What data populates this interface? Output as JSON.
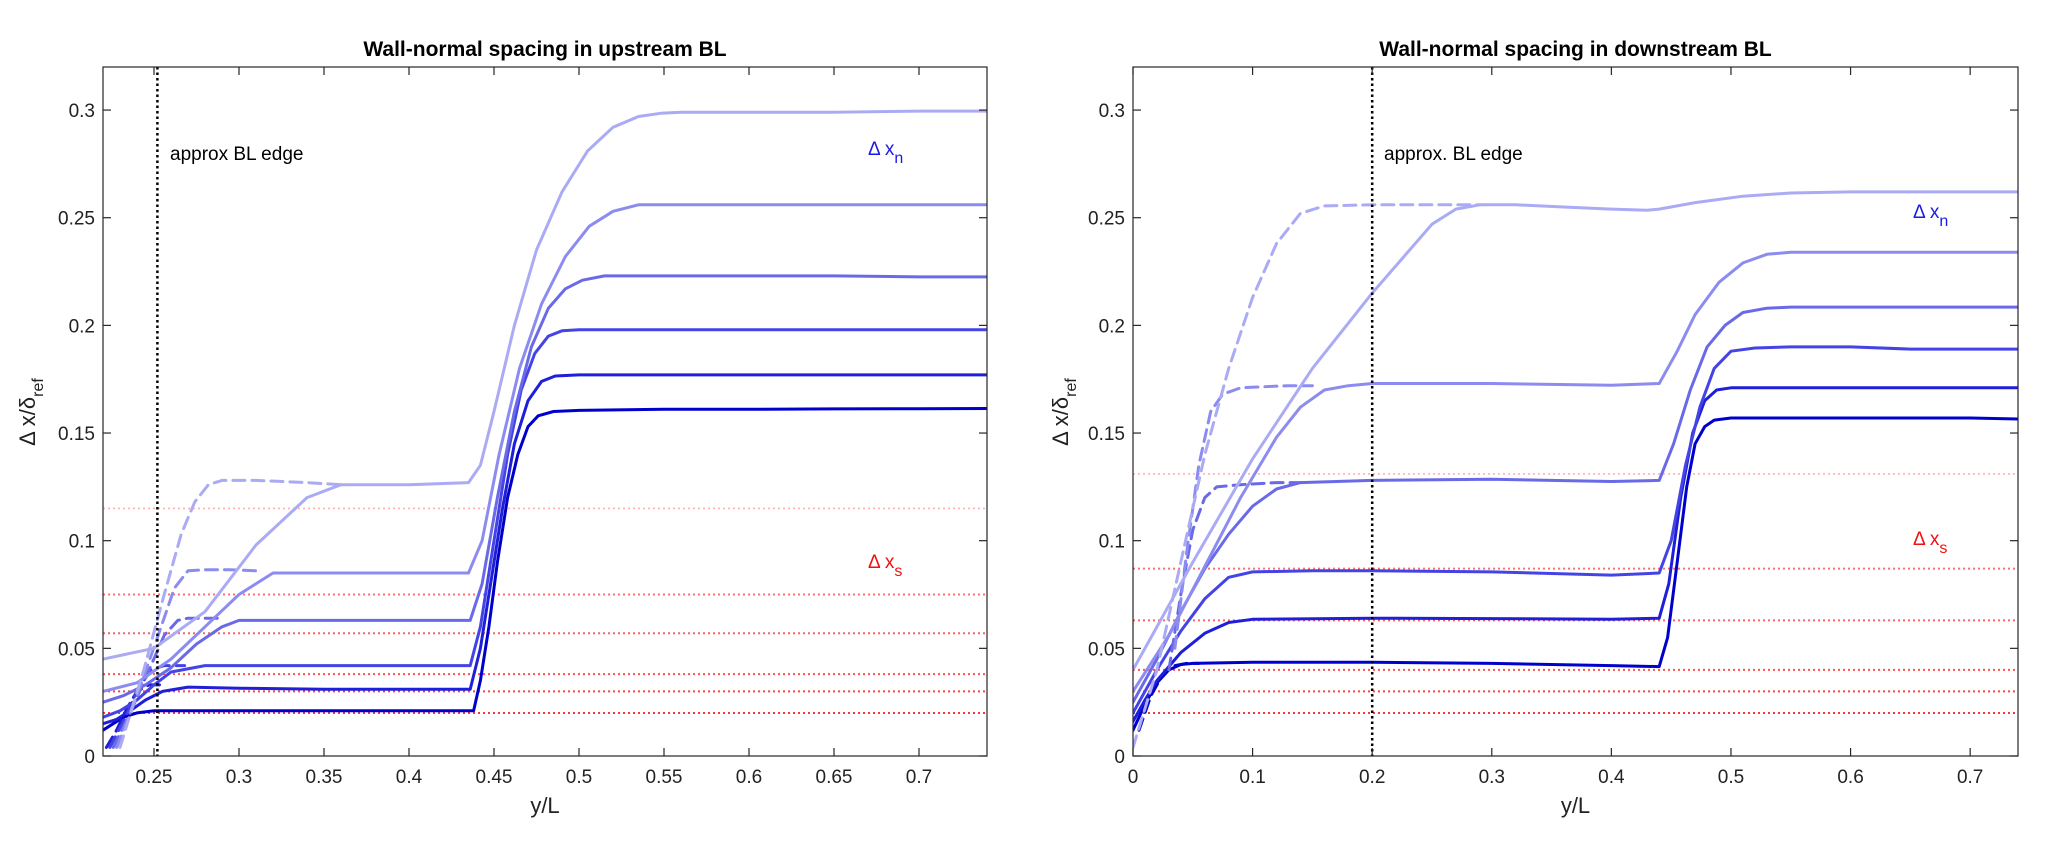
{
  "colors": {
    "dn_palette": [
      "#0000cc",
      "#1f1fd9",
      "#4444e6",
      "#6a6ae8",
      "#8c8cf0",
      "#ababf5"
    ],
    "ds": "#ff3333",
    "ds_light": "#ffb0b0",
    "axis": "#262626",
    "edge": "#000000"
  },
  "chart_data": [
    {
      "type": "line",
      "title": "Wall-normal spacing in upstream BL",
      "xlabel": "y/L",
      "ylabel_main": "Δ x/δ",
      "ylabel_sub": "ref",
      "xlim": [
        0.22,
        0.74
      ],
      "ylim": [
        0,
        0.32
      ],
      "xticks": [
        0.25,
        0.3,
        0.35,
        0.4,
        0.45,
        0.5,
        0.55,
        0.6,
        0.65,
        0.7
      ],
      "xtick_labels": [
        "0.25",
        "0.3",
        "0.35",
        "0.4",
        "0.45",
        "0.5",
        "0.55",
        "0.6",
        "0.65",
        "0.7"
      ],
      "yticks": [
        0,
        0.05,
        0.1,
        0.15,
        0.2,
        0.25,
        0.3
      ],
      "ytick_labels": [
        "0",
        "0.05",
        "0.1",
        "0.15",
        "0.2",
        "0.25",
        "0.3"
      ],
      "edge_line": {
        "x": 0.252,
        "label": "approx BL edge"
      },
      "dn_label": {
        "main": "Δ x",
        "sub": "n"
      },
      "ds_label": {
        "main": "Δ x",
        "sub": "s"
      },
      "ds_levels": [
        0.02,
        0.03,
        0.038,
        0.057,
        0.075,
        0.115
      ],
      "series": [
        {
          "shade": 0,
          "dash": false,
          "x": [
            0.22,
            0.226,
            0.232,
            0.24,
            0.25,
            0.28,
            0.3,
            0.35,
            0.4,
            0.438,
            0.442,
            0.447,
            0.452,
            0.458,
            0.464,
            0.47,
            0.476,
            0.485,
            0.5,
            0.55,
            0.6,
            0.65,
            0.7,
            0.74
          ],
          "y": [
            0.012,
            0.015,
            0.018,
            0.02,
            0.021,
            0.021,
            0.021,
            0.021,
            0.021,
            0.021,
            0.035,
            0.06,
            0.09,
            0.12,
            0.14,
            0.153,
            0.158,
            0.16,
            0.1605,
            0.161,
            0.161,
            0.1612,
            0.1613,
            0.1614
          ]
        },
        {
          "shade": 1,
          "dash": false,
          "x": [
            0.22,
            0.228,
            0.236,
            0.245,
            0.255,
            0.27,
            0.3,
            0.35,
            0.4,
            0.436,
            0.442,
            0.448,
            0.455,
            0.462,
            0.47,
            0.478,
            0.486,
            0.5,
            0.55,
            0.6,
            0.65,
            0.7,
            0.74
          ],
          "y": [
            0.015,
            0.017,
            0.021,
            0.026,
            0.03,
            0.032,
            0.0315,
            0.031,
            0.031,
            0.031,
            0.05,
            0.08,
            0.115,
            0.145,
            0.165,
            0.174,
            0.1765,
            0.177,
            0.177,
            0.177,
            0.177,
            0.177,
            0.177
          ]
        },
        {
          "shade": 1,
          "dash": true,
          "x": [
            0.222,
            0.228,
            0.234,
            0.24,
            0.247,
            0.254
          ],
          "y": [
            0.004,
            0.012,
            0.022,
            0.03,
            0.033,
            0.033
          ]
        },
        {
          "shade": 2,
          "dash": false,
          "x": [
            0.22,
            0.23,
            0.24,
            0.25,
            0.26,
            0.28,
            0.3,
            0.35,
            0.4,
            0.436,
            0.442,
            0.45,
            0.458,
            0.466,
            0.474,
            0.482,
            0.49,
            0.5,
            0.55,
            0.6,
            0.65,
            0.7,
            0.74
          ],
          "y": [
            0.018,
            0.021,
            0.026,
            0.033,
            0.039,
            0.042,
            0.042,
            0.042,
            0.042,
            0.042,
            0.06,
            0.1,
            0.14,
            0.17,
            0.187,
            0.195,
            0.1975,
            0.198,
            0.198,
            0.198,
            0.198,
            0.198,
            0.198
          ]
        },
        {
          "shade": 2,
          "dash": true,
          "x": [
            0.224,
            0.232,
            0.24,
            0.248,
            0.256,
            0.262,
            0.268
          ],
          "y": [
            0.004,
            0.016,
            0.03,
            0.04,
            0.042,
            0.042,
            0.042
          ]
        },
        {
          "shade": 3,
          "dash": false,
          "x": [
            0.22,
            0.232,
            0.245,
            0.26,
            0.275,
            0.29,
            0.3,
            0.35,
            0.4,
            0.436,
            0.443,
            0.452,
            0.462,
            0.472,
            0.482,
            0.492,
            0.502,
            0.515,
            0.55,
            0.6,
            0.65,
            0.7,
            0.74
          ],
          "y": [
            0.025,
            0.028,
            0.033,
            0.041,
            0.052,
            0.06,
            0.063,
            0.063,
            0.063,
            0.063,
            0.08,
            0.12,
            0.16,
            0.19,
            0.208,
            0.217,
            0.221,
            0.223,
            0.223,
            0.223,
            0.223,
            0.2225,
            0.2225
          ]
        },
        {
          "shade": 3,
          "dash": true,
          "x": [
            0.226,
            0.236,
            0.246,
            0.256,
            0.264,
            0.27,
            0.28,
            0.29
          ],
          "y": [
            0.004,
            0.02,
            0.038,
            0.056,
            0.063,
            0.064,
            0.064,
            0.064
          ]
        },
        {
          "shade": 4,
          "dash": false,
          "x": [
            0.22,
            0.24,
            0.26,
            0.28,
            0.3,
            0.32,
            0.35,
            0.4,
            0.435,
            0.443,
            0.453,
            0.465,
            0.478,
            0.492,
            0.506,
            0.52,
            0.535,
            0.55,
            0.6,
            0.65,
            0.7,
            0.74
          ],
          "y": [
            0.03,
            0.034,
            0.045,
            0.06,
            0.075,
            0.085,
            0.085,
            0.085,
            0.085,
            0.1,
            0.14,
            0.18,
            0.21,
            0.232,
            0.246,
            0.253,
            0.256,
            0.256,
            0.256,
            0.256,
            0.256,
            0.256
          ]
        },
        {
          "shade": 4,
          "dash": true,
          "x": [
            0.228,
            0.24,
            0.252,
            0.262,
            0.27,
            0.28,
            0.295,
            0.31
          ],
          "y": [
            0.004,
            0.028,
            0.055,
            0.078,
            0.086,
            0.0865,
            0.0865,
            0.086
          ]
        },
        {
          "shade": 5,
          "dash": false,
          "x": [
            0.22,
            0.25,
            0.28,
            0.31,
            0.34,
            0.36,
            0.4,
            0.435,
            0.442,
            0.45,
            0.462,
            0.475,
            0.49,
            0.505,
            0.52,
            0.535,
            0.548,
            0.56,
            0.6,
            0.65,
            0.7,
            0.74
          ],
          "y": [
            0.045,
            0.05,
            0.067,
            0.098,
            0.12,
            0.126,
            0.126,
            0.127,
            0.135,
            0.16,
            0.2,
            0.235,
            0.262,
            0.281,
            0.292,
            0.297,
            0.2985,
            0.299,
            0.299,
            0.299,
            0.2995,
            0.2995
          ]
        },
        {
          "shade": 5,
          "dash": true,
          "x": [
            0.23,
            0.244,
            0.256,
            0.266,
            0.274,
            0.282,
            0.29,
            0.31,
            0.34,
            0.36
          ],
          "y": [
            0.004,
            0.04,
            0.075,
            0.103,
            0.118,
            0.126,
            0.128,
            0.128,
            0.127,
            0.126
          ]
        }
      ]
    },
    {
      "type": "line",
      "title": "Wall-normal spacing in downstream BL",
      "xlabel": "y/L",
      "ylabel_main": "Δ x/δ",
      "ylabel_sub": "ref",
      "xlim": [
        0,
        0.74
      ],
      "ylim": [
        0,
        0.32
      ],
      "xticks": [
        0,
        0.1,
        0.2,
        0.3,
        0.4,
        0.5,
        0.6,
        0.7
      ],
      "xtick_labels": [
        "0",
        "0.1",
        "0.2",
        "0.3",
        "0.4",
        "0.5",
        "0.6",
        "0.7"
      ],
      "yticks": [
        0,
        0.05,
        0.1,
        0.15,
        0.2,
        0.25,
        0.3
      ],
      "ytick_labels": [
        "0",
        "0.05",
        "0.1",
        "0.15",
        "0.2",
        "0.25",
        "0.3"
      ],
      "edge_line": {
        "x": 0.2,
        "label": "approx. BL edge"
      },
      "dn_label": {
        "main": "Δ x",
        "sub": "n"
      },
      "ds_label": {
        "main": "Δ x",
        "sub": "s"
      },
      "ds_levels": [
        0.02,
        0.03,
        0.04,
        0.063,
        0.087,
        0.131
      ],
      "series": [
        {
          "shade": 0,
          "dash": false,
          "x": [
            0,
            0.01,
            0.02,
            0.03,
            0.04,
            0.05,
            0.1,
            0.2,
            0.3,
            0.4,
            0.44,
            0.447,
            0.455,
            0.463,
            0.47,
            0.478,
            0.486,
            0.5,
            0.55,
            0.6,
            0.65,
            0.7,
            0.74
          ],
          "y": [
            0.012,
            0.024,
            0.034,
            0.04,
            0.0425,
            0.043,
            0.0435,
            0.0435,
            0.043,
            0.042,
            0.0415,
            0.055,
            0.09,
            0.125,
            0.145,
            0.153,
            0.156,
            0.157,
            0.157,
            0.157,
            0.157,
            0.157,
            0.1565
          ]
        },
        {
          "shade": 0,
          "dash": true,
          "x": [
            0.005,
            0.015,
            0.025,
            0.035,
            0.045,
            0.055
          ],
          "y": [
            0.012,
            0.028,
            0.038,
            0.042,
            0.043,
            0.043
          ]
        },
        {
          "shade": 1,
          "dash": false,
          "x": [
            0,
            0.01,
            0.02,
            0.04,
            0.06,
            0.08,
            0.1,
            0.2,
            0.3,
            0.4,
            0.44,
            0.448,
            0.458,
            0.468,
            0.478,
            0.488,
            0.5,
            0.55,
            0.6,
            0.65,
            0.7,
            0.74
          ],
          "y": [
            0.016,
            0.026,
            0.035,
            0.048,
            0.057,
            0.062,
            0.0635,
            0.064,
            0.0638,
            0.0635,
            0.064,
            0.08,
            0.12,
            0.15,
            0.165,
            0.17,
            0.171,
            0.171,
            0.171,
            0.171,
            0.171,
            0.171
          ]
        },
        {
          "shade": 2,
          "dash": false,
          "x": [
            0,
            0.02,
            0.04,
            0.06,
            0.08,
            0.1,
            0.15,
            0.2,
            0.3,
            0.4,
            0.44,
            0.45,
            0.462,
            0.474,
            0.486,
            0.5,
            0.52,
            0.55,
            0.6,
            0.65,
            0.7,
            0.74
          ],
          "y": [
            0.02,
            0.04,
            0.058,
            0.073,
            0.083,
            0.0855,
            0.086,
            0.086,
            0.0855,
            0.084,
            0.085,
            0.1,
            0.135,
            0.162,
            0.18,
            0.188,
            0.1895,
            0.19,
            0.19,
            0.189,
            0.189,
            0.189
          ]
        },
        {
          "shade": 3,
          "dash": false,
          "x": [
            0,
            0.02,
            0.04,
            0.06,
            0.08,
            0.1,
            0.12,
            0.14,
            0.2,
            0.3,
            0.4,
            0.44,
            0.452,
            0.466,
            0.48,
            0.495,
            0.51,
            0.53,
            0.55,
            0.6,
            0.65,
            0.7,
            0.74
          ],
          "y": [
            0.025,
            0.045,
            0.067,
            0.087,
            0.103,
            0.116,
            0.124,
            0.127,
            0.128,
            0.1285,
            0.1275,
            0.128,
            0.145,
            0.17,
            0.19,
            0.2,
            0.206,
            0.208,
            0.2085,
            0.2085,
            0.2085,
            0.2085,
            0.2085
          ]
        },
        {
          "shade": 3,
          "dash": true,
          "x": [
            0.03,
            0.04,
            0.05,
            0.06,
            0.07,
            0.09,
            0.12,
            0.14
          ],
          "y": [
            0.04,
            0.075,
            0.105,
            0.12,
            0.125,
            0.126,
            0.127,
            0.127
          ]
        },
        {
          "shade": 4,
          "dash": false,
          "x": [
            0,
            0.03,
            0.06,
            0.09,
            0.12,
            0.14,
            0.16,
            0.18,
            0.2,
            0.3,
            0.4,
            0.44,
            0.455,
            0.47,
            0.49,
            0.51,
            0.53,
            0.55,
            0.6,
            0.65,
            0.7,
            0.74
          ],
          "y": [
            0.03,
            0.056,
            0.088,
            0.12,
            0.148,
            0.162,
            0.17,
            0.172,
            0.173,
            0.173,
            0.1722,
            0.173,
            0.188,
            0.205,
            0.22,
            0.229,
            0.233,
            0.234,
            0.234,
            0.234,
            0.234,
            0.234
          ]
        },
        {
          "shade": 4,
          "dash": true,
          "x": [
            0.035,
            0.045,
            0.055,
            0.065,
            0.075,
            0.09,
            0.11,
            0.13,
            0.15
          ],
          "y": [
            0.05,
            0.095,
            0.135,
            0.16,
            0.168,
            0.171,
            0.1715,
            0.172,
            0.172
          ]
        },
        {
          "shade": 5,
          "dash": false,
          "x": [
            0,
            0.05,
            0.1,
            0.15,
            0.2,
            0.25,
            0.27,
            0.29,
            0.32,
            0.36,
            0.4,
            0.43,
            0.44,
            0.47,
            0.51,
            0.55,
            0.6,
            0.65,
            0.7,
            0.74
          ],
          "y": [
            0.04,
            0.09,
            0.138,
            0.18,
            0.215,
            0.247,
            0.254,
            0.256,
            0.256,
            0.255,
            0.254,
            0.2535,
            0.254,
            0.257,
            0.26,
            0.2615,
            0.262,
            0.262,
            0.262,
            0.262
          ]
        },
        {
          "shade": 5,
          "dash": true,
          "x": [
            0,
            0.02,
            0.04,
            0.06,
            0.08,
            0.1,
            0.12,
            0.14,
            0.16,
            0.2,
            0.25,
            0.29
          ],
          "y": [
            0.004,
            0.04,
            0.09,
            0.14,
            0.18,
            0.213,
            0.238,
            0.252,
            0.2555,
            0.256,
            0.256,
            0.256
          ]
        }
      ]
    }
  ]
}
